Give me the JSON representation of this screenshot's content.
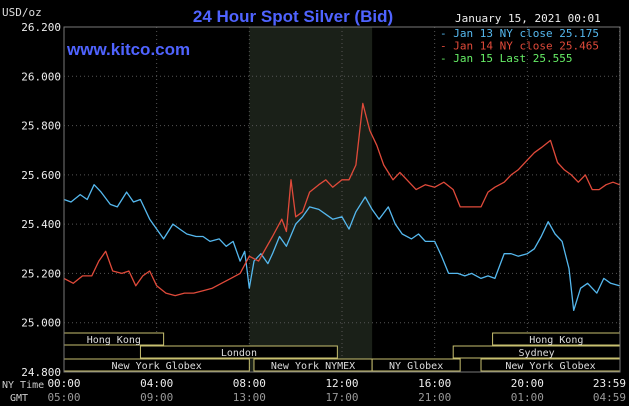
{
  "chart_data": {
    "type": "line",
    "title": "24 Hour Spot Silver (Bid)",
    "website": "www.kitco.com",
    "date": "January 15, 2021 00:01",
    "yunit": "USD/oz",
    "ylim": [
      24.8,
      26.2
    ],
    "yticks": [
      "26.200",
      "26.000",
      "25.800",
      "25.600",
      "25.400",
      "25.200",
      "25.000",
      "24.800"
    ],
    "ytick_values": [
      26.2,
      26.0,
      25.8,
      25.6,
      25.4,
      25.2,
      25.0,
      24.8
    ],
    "xlim": [
      0,
      24
    ],
    "x_label_ny": "NY Time",
    "x_label_gmt": "GMT",
    "xticks_ny": [
      "00:00",
      "04:00",
      "08:00",
      "12:00",
      "16:00",
      "20:00",
      "23:59"
    ],
    "xticks_gmt": [
      "05:00",
      "09:00",
      "13:00",
      "17:00",
      "21:00",
      "01:00",
      "04:59"
    ],
    "xtick_hours": [
      0,
      4,
      8,
      12,
      16,
      20,
      23.98
    ],
    "grid": true,
    "shaded_session": [
      8,
      13.3
    ],
    "sessions": [
      {
        "name": "Hong Kong",
        "start": 0,
        "end": 4.3,
        "row": 0
      },
      {
        "name": "Hong Kong",
        "start": 18.5,
        "end": 24,
        "row": 0
      },
      {
        "name": "London",
        "start": 3.3,
        "end": 11.8,
        "row": 1
      },
      {
        "name": "Sydney",
        "start": 16.8,
        "end": 24,
        "row": 1
      },
      {
        "name": "New York Globex",
        "start": 0,
        "end": 8,
        "row": 2
      },
      {
        "name": "New York NYMEX",
        "start": 8.2,
        "end": 13.3,
        "row": 2
      },
      {
        "name": "NY Globex",
        "start": 13.3,
        "end": 17.1,
        "row": 2
      },
      {
        "name": "New York Globex",
        "start": 18,
        "end": 24,
        "row": 2
      }
    ],
    "legend": [
      {
        "label": "Jan 13 NY close 25.175",
        "color": "#55b8ee"
      },
      {
        "label": "Jan 14 NY close 25.465",
        "color": "#e04a3a"
      },
      {
        "label": "Jan 15 Last 25.555",
        "color": "#66ee66"
      }
    ],
    "series": [
      {
        "name": "Jan 13",
        "color": "#55b8ee",
        "points": [
          [
            0,
            25.5
          ],
          [
            0.3,
            25.49
          ],
          [
            0.7,
            25.52
          ],
          [
            1,
            25.5
          ],
          [
            1.3,
            25.56
          ],
          [
            1.6,
            25.53
          ],
          [
            2,
            25.48
          ],
          [
            2.3,
            25.47
          ],
          [
            2.7,
            25.53
          ],
          [
            3,
            25.49
          ],
          [
            3.3,
            25.5
          ],
          [
            3.7,
            25.42
          ],
          [
            4,
            25.38
          ],
          [
            4.3,
            25.34
          ],
          [
            4.7,
            25.4
          ],
          [
            5,
            25.38
          ],
          [
            5.3,
            25.36
          ],
          [
            5.7,
            25.35
          ],
          [
            6,
            25.35
          ],
          [
            6.3,
            25.33
          ],
          [
            6.7,
            25.34
          ],
          [
            7,
            25.31
          ],
          [
            7.3,
            25.33
          ],
          [
            7.6,
            25.25
          ],
          [
            7.8,
            25.29
          ],
          [
            8,
            25.14
          ],
          [
            8.2,
            25.25
          ],
          [
            8.5,
            25.28
          ],
          [
            8.8,
            25.24
          ],
          [
            9,
            25.28
          ],
          [
            9.3,
            25.35
          ],
          [
            9.6,
            25.31
          ],
          [
            10,
            25.4
          ],
          [
            10.3,
            25.43
          ],
          [
            10.6,
            25.47
          ],
          [
            11,
            25.46
          ],
          [
            11.3,
            25.44
          ],
          [
            11.6,
            25.42
          ],
          [
            12,
            25.43
          ],
          [
            12.3,
            25.38
          ],
          [
            12.6,
            25.45
          ],
          [
            13,
            25.51
          ],
          [
            13.3,
            25.46
          ],
          [
            13.6,
            25.42
          ],
          [
            14,
            25.47
          ],
          [
            14.3,
            25.4
          ],
          [
            14.6,
            25.36
          ],
          [
            15,
            25.34
          ],
          [
            15.3,
            25.36
          ],
          [
            15.6,
            25.33
          ],
          [
            16,
            25.33
          ],
          [
            16.3,
            25.27
          ],
          [
            16.6,
            25.2
          ],
          [
            17,
            25.2
          ],
          [
            17.3,
            25.19
          ],
          [
            17.6,
            25.2
          ],
          [
            18,
            25.18
          ],
          [
            18.3,
            25.19
          ],
          [
            18.6,
            25.18
          ],
          [
            19,
            25.28
          ],
          [
            19.3,
            25.28
          ],
          [
            19.6,
            25.27
          ],
          [
            20,
            25.28
          ],
          [
            20.3,
            25.3
          ],
          [
            20.6,
            25.35
          ],
          [
            20.9,
            25.41
          ],
          [
            21.2,
            25.36
          ],
          [
            21.5,
            25.33
          ],
          [
            21.8,
            25.22
          ],
          [
            22,
            25.05
          ],
          [
            22.3,
            25.14
          ],
          [
            22.6,
            25.16
          ],
          [
            23,
            25.12
          ],
          [
            23.3,
            25.18
          ],
          [
            23.6,
            25.16
          ],
          [
            23.98,
            25.15
          ]
        ]
      },
      {
        "name": "Jan 14",
        "color": "#e04a3a",
        "points": [
          [
            0,
            25.18
          ],
          [
            0.4,
            25.16
          ],
          [
            0.8,
            25.19
          ],
          [
            1.2,
            25.19
          ],
          [
            1.5,
            25.25
          ],
          [
            1.8,
            25.29
          ],
          [
            2.1,
            25.21
          ],
          [
            2.5,
            25.2
          ],
          [
            2.8,
            25.21
          ],
          [
            3.1,
            25.15
          ],
          [
            3.4,
            25.19
          ],
          [
            3.7,
            25.21
          ],
          [
            4,
            25.15
          ],
          [
            4.4,
            25.12
          ],
          [
            4.8,
            25.11
          ],
          [
            5.2,
            25.12
          ],
          [
            5.6,
            25.12
          ],
          [
            6,
            25.13
          ],
          [
            6.4,
            25.14
          ],
          [
            6.8,
            25.16
          ],
          [
            7.2,
            25.18
          ],
          [
            7.6,
            25.2
          ],
          [
            8,
            25.27
          ],
          [
            8.4,
            25.25
          ],
          [
            8.7,
            25.3
          ],
          [
            9,
            25.35
          ],
          [
            9.4,
            25.42
          ],
          [
            9.6,
            25.37
          ],
          [
            9.8,
            25.58
          ],
          [
            10,
            25.43
          ],
          [
            10.3,
            25.45
          ],
          [
            10.6,
            25.53
          ],
          [
            11,
            25.56
          ],
          [
            11.3,
            25.58
          ],
          [
            11.6,
            25.55
          ],
          [
            12,
            25.58
          ],
          [
            12.3,
            25.58
          ],
          [
            12.6,
            25.64
          ],
          [
            12.9,
            25.89
          ],
          [
            13.2,
            25.78
          ],
          [
            13.5,
            25.72
          ],
          [
            13.8,
            25.64
          ],
          [
            14.2,
            25.58
          ],
          [
            14.5,
            25.61
          ],
          [
            14.8,
            25.58
          ],
          [
            15.2,
            25.54
          ],
          [
            15.6,
            25.56
          ],
          [
            16,
            25.55
          ],
          [
            16.4,
            25.57
          ],
          [
            16.8,
            25.54
          ],
          [
            17.1,
            25.47
          ],
          [
            17.5,
            25.47
          ],
          [
            18,
            25.47
          ],
          [
            18.3,
            25.53
          ],
          [
            18.6,
            25.55
          ],
          [
            19,
            25.57
          ],
          [
            19.3,
            25.6
          ],
          [
            19.6,
            25.62
          ],
          [
            20,
            25.66
          ],
          [
            20.3,
            25.69
          ],
          [
            20.6,
            25.71
          ],
          [
            21,
            25.74
          ],
          [
            21.3,
            25.65
          ],
          [
            21.6,
            25.62
          ],
          [
            21.9,
            25.6
          ],
          [
            22.2,
            25.57
          ],
          [
            22.5,
            25.6
          ],
          [
            22.8,
            25.54
          ],
          [
            23.1,
            25.54
          ],
          [
            23.4,
            25.56
          ],
          [
            23.7,
            25.57
          ],
          [
            23.98,
            25.56
          ]
        ]
      },
      {
        "name": "Jan 15",
        "color": "#66ee66",
        "points": []
      }
    ]
  }
}
